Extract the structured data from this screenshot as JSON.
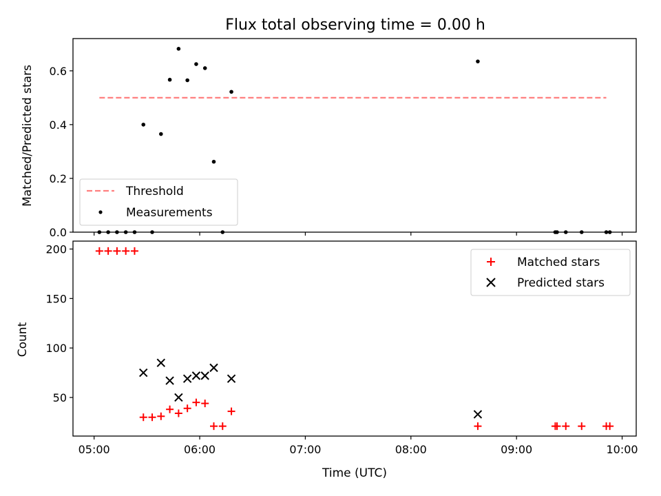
{
  "chart_data": [
    {
      "type": "scatter",
      "title": "Flux total observing time = 0.00 h",
      "xlabel": "",
      "ylabel": "Matched/Predicted stars",
      "xlim": [
        "04:48",
        "10:08"
      ],
      "ylim": [
        0,
        0.72
      ],
      "yticks": [
        0.0,
        0.2,
        0.4,
        0.6
      ],
      "ytick_labels": [
        "0.0",
        "0.2",
        "0.4",
        "0.6"
      ],
      "grid": false,
      "legend_position": "lower-left",
      "series": [
        {
          "name": "Threshold",
          "kind": "dashed-line",
          "color": "#ff7f7f",
          "x": [
            "05:03",
            "09:51"
          ],
          "y": [
            0.5,
            0.5
          ]
        },
        {
          "name": "Measurements",
          "kind": "points",
          "color": "#000000",
          "x": [
            "05:03",
            "05:08",
            "05:13",
            "05:18",
            "05:23",
            "05:28",
            "05:33",
            "05:38",
            "05:43",
            "05:48",
            "05:53",
            "05:58",
            "06:03",
            "06:08",
            "06:13",
            "06:18",
            "08:38",
            "09:22",
            "09:23",
            "09:28",
            "09:37",
            "09:51",
            "09:53"
          ],
          "y": [
            0.0,
            0.0,
            0.0,
            0.0,
            0.0,
            0.4,
            0.0,
            0.365,
            0.567,
            0.682,
            0.565,
            0.625,
            0.61,
            0.262,
            0.0,
            0.522,
            0.635,
            0.0,
            0.0,
            0.0,
            0.0,
            0.0,
            0.0
          ]
        }
      ]
    },
    {
      "type": "scatter",
      "title": "",
      "xlabel": "Time (UTC)",
      "ylabel": "Count",
      "xlim": [
        "04:48",
        "10:08"
      ],
      "ylim": [
        11,
        208
      ],
      "yticks": [
        50,
        100,
        150,
        200
      ],
      "ytick_labels": [
        "50",
        "100",
        "150",
        "200"
      ],
      "xticks": [
        "05:00",
        "06:00",
        "07:00",
        "08:00",
        "09:00",
        "10:00"
      ],
      "xtick_labels": [
        "05:00",
        "06:00",
        "07:00",
        "08:00",
        "09:00",
        "10:00"
      ],
      "grid": false,
      "legend_position": "upper-right",
      "series": [
        {
          "name": "Matched stars",
          "marker": "+",
          "color": "#ff0000",
          "x": [
            "05:03",
            "05:08",
            "05:13",
            "05:18",
            "05:23",
            "05:28",
            "05:33",
            "05:38",
            "05:43",
            "05:48",
            "05:53",
            "05:58",
            "06:03",
            "06:08",
            "06:13",
            "06:18",
            "08:38",
            "09:22",
            "09:23",
            "09:28",
            "09:37",
            "09:51",
            "09:53"
          ],
          "y": [
            198,
            198,
            198,
            198,
            198,
            30,
            30,
            31,
            38,
            34,
            39,
            45,
            44,
            21,
            21,
            36,
            21,
            21,
            21,
            21,
            21,
            21,
            21
          ]
        },
        {
          "name": "Predicted stars",
          "marker": "x",
          "color": "#000000",
          "x": [
            "05:28",
            "05:38",
            "05:43",
            "05:48",
            "05:53",
            "05:58",
            "06:03",
            "06:08",
            "06:18",
            "08:38"
          ],
          "y": [
            75,
            85,
            67,
            50,
            69,
            72,
            72,
            80,
            69,
            33
          ]
        }
      ]
    }
  ]
}
